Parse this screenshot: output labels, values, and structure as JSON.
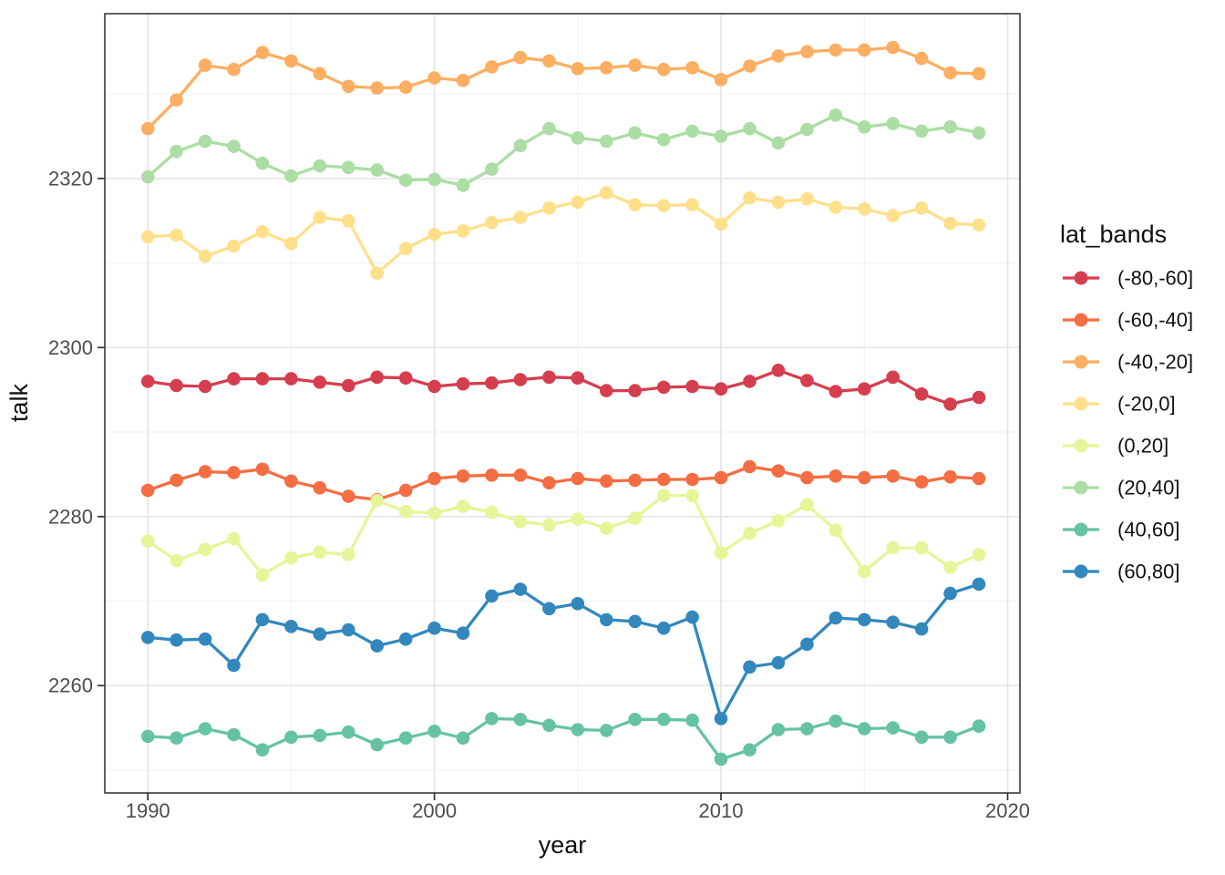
{
  "chart_data": {
    "type": "line",
    "title": "",
    "xlabel": "year",
    "ylabel": "talk",
    "legend_title": "lat_bands",
    "legend_position": "right",
    "grid": true,
    "x": [
      1990,
      1991,
      1992,
      1993,
      1994,
      1995,
      1996,
      1997,
      1998,
      1999,
      2000,
      2001,
      2002,
      2003,
      2004,
      2005,
      2006,
      2007,
      2008,
      2009,
      2010,
      2011,
      2012,
      2013,
      2014,
      2015,
      2016,
      2017,
      2018,
      2019
    ],
    "x_ticks": [
      1990,
      2000,
      2010,
      2020
    ],
    "x_minor_gridlines": [
      1995,
      2005,
      2015
    ],
    "y_ticks": [
      2260,
      2280,
      2300,
      2320
    ],
    "y_minor_gridlines": [
      2250,
      2270,
      2290,
      2310,
      2330
    ],
    "xlim": [
      1988.5,
      2020.43
    ],
    "ylim": [
      2247.3,
      2339.5
    ],
    "marker": "circle",
    "series": [
      {
        "name": "(-80,-60]",
        "color": "#D53E4F",
        "values": [
          2296.0,
          2295.5,
          2295.4,
          2296.3,
          2296.3,
          2296.3,
          2295.9,
          2295.5,
          2296.5,
          2296.4,
          2295.4,
          2295.7,
          2295.8,
          2296.2,
          2296.5,
          2296.4,
          2294.9,
          2294.9,
          2295.3,
          2295.4,
          2295.1,
          2296.0,
          2297.3,
          2296.1,
          2294.8,
          2295.1,
          2296.5,
          2294.5,
          2293.3,
          2294.1
        ]
      },
      {
        "name": "(-60,-40]",
        "color": "#F46D43",
        "values": [
          2283.1,
          2284.3,
          2285.3,
          2285.2,
          2285.6,
          2284.2,
          2283.4,
          2282.4,
          2282.0,
          2283.1,
          2284.5,
          2284.8,
          2284.9,
          2284.9,
          2284.0,
          2284.5,
          2284.2,
          2284.3,
          2284.4,
          2284.4,
          2284.6,
          2285.9,
          2285.4,
          2284.6,
          2284.8,
          2284.6,
          2284.8,
          2284.1,
          2284.7,
          2284.5
        ]
      },
      {
        "name": "(-40,-20]",
        "color": "#FDAE61",
        "values": [
          2325.9,
          2329.3,
          2333.4,
          2332.9,
          2334.9,
          2333.9,
          2332.4,
          2330.9,
          2330.7,
          2330.8,
          2331.9,
          2331.6,
          2333.2,
          2334.3,
          2333.9,
          2333.0,
          2333.1,
          2333.4,
          2332.9,
          2333.1,
          2331.7,
          2333.3,
          2334.5,
          2335.0,
          2335.2,
          2335.2,
          2335.5,
          2334.2,
          2332.5,
          2332.4
        ]
      },
      {
        "name": "(-20,0]",
        "color": "#FEE08B",
        "values": [
          2313.1,
          2313.3,
          2310.8,
          2312.0,
          2313.7,
          2312.3,
          2315.4,
          2315.0,
          2308.8,
          2311.7,
          2313.4,
          2313.8,
          2314.8,
          2315.4,
          2316.5,
          2317.2,
          2318.3,
          2316.9,
          2316.8,
          2316.9,
          2314.6,
          2317.7,
          2317.2,
          2317.6,
          2316.6,
          2316.4,
          2315.6,
          2316.5,
          2314.7,
          2314.5
        ]
      },
      {
        "name": "(0,20]",
        "color": "#E6F598",
        "values": [
          2277.1,
          2274.8,
          2276.1,
          2277.4,
          2273.1,
          2275.1,
          2275.8,
          2275.5,
          2281.9,
          2280.6,
          2280.4,
          2281.2,
          2280.5,
          2279.4,
          2279.0,
          2279.7,
          2278.6,
          2279.8,
          2282.5,
          2282.5,
          2275.7,
          2278.0,
          2279.5,
          2281.4,
          2278.4,
          2273.5,
          2276.3,
          2276.3,
          2274.0,
          2275.5
        ]
      },
      {
        "name": "(20,40]",
        "color": "#ABDDA4",
        "values": [
          2320.2,
          2323.2,
          2324.4,
          2323.8,
          2321.8,
          2320.3,
          2321.5,
          2321.3,
          2321.0,
          2319.8,
          2319.9,
          2319.2,
          2321.1,
          2323.9,
          2325.9,
          2324.8,
          2324.4,
          2325.4,
          2324.6,
          2325.6,
          2325.0,
          2325.9,
          2324.2,
          2325.8,
          2327.5,
          2326.1,
          2326.5,
          2325.6,
          2326.1,
          2325.4
        ]
      },
      {
        "name": "(40,60]",
        "color": "#66C2A5",
        "values": [
          2254.0,
          2253.8,
          2254.9,
          2254.2,
          2252.4,
          2253.9,
          2254.1,
          2254.5,
          2253.0,
          2253.8,
          2254.6,
          2253.8,
          2256.1,
          2256.0,
          2255.3,
          2254.8,
          2254.7,
          2256.0,
          2256.0,
          2255.9,
          2251.3,
          2252.4,
          2254.8,
          2254.9,
          2255.8,
          2254.9,
          2255.0,
          2253.9,
          2253.9,
          2255.2
        ]
      },
      {
        "name": "(60,80]",
        "color": "#3288BD",
        "values": [
          2265.7,
          2265.4,
          2265.5,
          2262.4,
          2267.8,
          2267.0,
          2266.1,
          2266.6,
          2264.7,
          2265.5,
          2266.8,
          2266.2,
          2270.6,
          2271.4,
          2269.1,
          2269.7,
          2267.8,
          2267.6,
          2266.8,
          2268.1,
          2256.1,
          2262.2,
          2262.7,
          2264.9,
          2268.0,
          2267.8,
          2267.5,
          2266.7,
          2270.9,
          2272.0
        ]
      }
    ]
  }
}
